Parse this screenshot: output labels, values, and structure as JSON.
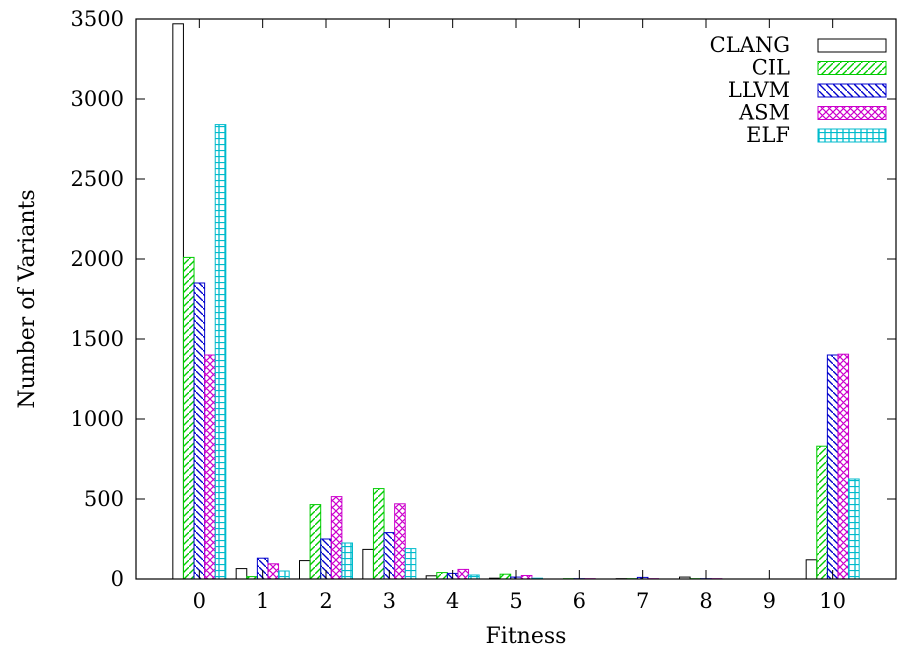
{
  "chart_data": {
    "type": "bar",
    "xlabel": "Fitness",
    "ylabel": "Number of Variants",
    "ylim": [
      0,
      3500
    ],
    "yticks": [
      0,
      500,
      1000,
      1500,
      2000,
      2500,
      3000,
      3500
    ],
    "categories": [
      "0",
      "1",
      "2",
      "3",
      "4",
      "5",
      "6",
      "7",
      "8",
      "9",
      "10"
    ],
    "grid": false,
    "legend_position": "top-right",
    "series": [
      {
        "name": "CLANG",
        "color": "#000000",
        "pattern": "empty",
        "values": [
          3470,
          65,
          115,
          185,
          20,
          5,
          0,
          2,
          12,
          0,
          120
        ]
      },
      {
        "name": "CIL",
        "color": "#00cc00",
        "pattern": "diagonal-up",
        "values": [
          2010,
          15,
          465,
          565,
          40,
          30,
          2,
          2,
          2,
          0,
          830
        ]
      },
      {
        "name": "LLVM",
        "color": "#0000cc",
        "pattern": "diagonal-down",
        "values": [
          1850,
          130,
          250,
          290,
          35,
          12,
          2,
          10,
          2,
          0,
          1400
        ]
      },
      {
        "name": "ASM",
        "color": "#cc00cc",
        "pattern": "crosshatch",
        "values": [
          1400,
          95,
          515,
          470,
          60,
          22,
          2,
          2,
          2,
          0,
          1405
        ]
      },
      {
        "name": "ELF",
        "color": "#00bbcc",
        "pattern": "grid",
        "values": [
          2840,
          50,
          225,
          190,
          25,
          5,
          0,
          0,
          0,
          0,
          625
        ]
      }
    ]
  }
}
